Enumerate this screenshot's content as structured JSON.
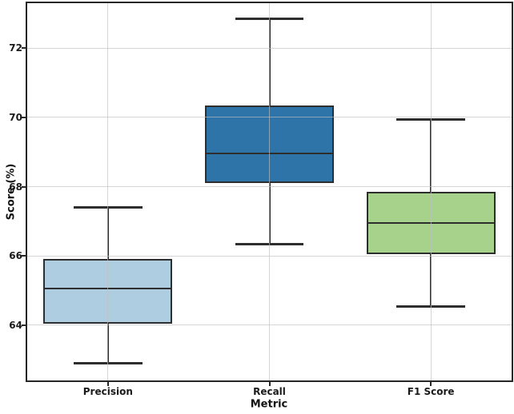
{
  "figure": {
    "background": "#ffffff"
  },
  "chart_data": {
    "type": "boxplot",
    "title": "",
    "xlabel": "Metric",
    "ylabel": "Score (%)",
    "categories": [
      "Precision",
      "Recall",
      "F1 Score"
    ],
    "series": [
      {
        "name": "Precision",
        "whisker_low": 62.9,
        "q1": 64.05,
        "median": 65.05,
        "q3": 65.9,
        "whisker_high": 67.4,
        "color": "#aecde1"
      },
      {
        "name": "Recall",
        "whisker_low": 66.35,
        "q1": 68.1,
        "median": 68.95,
        "q3": 70.35,
        "whisker_high": 72.85,
        "color": "#2e74a8"
      },
      {
        "name": "F1 Score",
        "whisker_low": 64.55,
        "q1": 66.05,
        "median": 66.95,
        "q3": 67.85,
        "whisker_high": 69.95,
        "color": "#a6d28c"
      }
    ],
    "yticks": [
      64,
      66,
      68,
      70,
      72
    ],
    "ylim": [
      62.4,
      73.3
    ],
    "grid": true,
    "grid_on_top": true,
    "grid_color": "#bebebe",
    "box_edge_color": "#2e2e2e",
    "spine_color": "#262626"
  }
}
